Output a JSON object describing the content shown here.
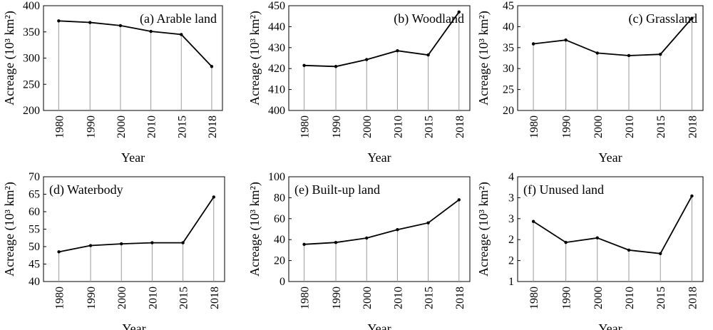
{
  "chart_data": [
    {
      "type": "line",
      "title": "(a) Arable land",
      "xlabel": "Year",
      "ylabel": "Acreage (10³ km²)",
      "categories": [
        "1980",
        "1990",
        "2000",
        "2010",
        "2015",
        "2018"
      ],
      "values": [
        371,
        368,
        362,
        351,
        345,
        284
      ],
      "ylim": [
        200,
        400
      ],
      "yticks": [
        "200",
        "250",
        "300",
        "350",
        "400"
      ],
      "grid": "vertical lines from points to axis"
    },
    {
      "type": "line",
      "title": "(b) Woodland",
      "xlabel": "Year",
      "ylabel": "Acreage (10³ km²)",
      "categories": [
        "1980",
        "1990",
        "2000",
        "2010",
        "2015",
        "2018"
      ],
      "values": [
        421.5,
        421,
        424.3,
        428.5,
        426.5,
        447
      ],
      "ylim": [
        400,
        450
      ],
      "yticks": [
        "400",
        "410",
        "420",
        "430",
        "440",
        "450"
      ],
      "grid": "vertical lines from points to axis"
    },
    {
      "type": "line",
      "title": "(c) Grassland",
      "xlabel": "Year",
      "ylabel": "Acreage (10³ km²)",
      "categories": [
        "1980",
        "1990",
        "2000",
        "2010",
        "2015",
        "2018"
      ],
      "values": [
        35.9,
        36.8,
        33.7,
        33.1,
        33.4,
        42
      ],
      "ylim": [
        20,
        45
      ],
      "yticks": [
        "20",
        "25",
        "30",
        "35",
        "40",
        "45"
      ],
      "grid": "vertical lines from points to axis"
    },
    {
      "type": "line",
      "title": "(d) Waterbody",
      "xlabel": "Year",
      "ylabel": "Acreage (10³ km²)",
      "categories": [
        "1980",
        "1990",
        "2000",
        "2010",
        "2015",
        "2018"
      ],
      "values": [
        48.5,
        50.3,
        50.8,
        51.1,
        51.1,
        64.2
      ],
      "ylim": [
        40,
        70
      ],
      "yticks": [
        "40",
        "45",
        "50",
        "55",
        "60",
        "65",
        "70"
      ],
      "grid": "vertical lines from points to axis"
    },
    {
      "type": "line",
      "title": "(e) Built-up land",
      "xlabel": "Year",
      "ylabel": "Acreage (10³ km²)",
      "categories": [
        "1980",
        "1990",
        "2000",
        "2010",
        "2015",
        "2018"
      ],
      "values": [
        35.5,
        37.3,
        41.5,
        49.5,
        56,
        78
      ],
      "ylim": [
        0,
        100
      ],
      "yticks": [
        "0",
        "20",
        "40",
        "60",
        "80",
        "100"
      ],
      "grid": "vertical lines from points to axis"
    },
    {
      "type": "line",
      "title": "(f) Unused land",
      "xlabel": "Year",
      "ylabel": "Acreage (10³ km²)",
      "categories": [
        "1980",
        "1990",
        "2000",
        "2010",
        "2015",
        "2018"
      ],
      "values": [
        2.72,
        2.12,
        2.25,
        1.9,
        1.8,
        3.45
      ],
      "ylim": [
        1,
        4
      ],
      "yticks": [
        "1",
        "2",
        "2",
        "3",
        "3",
        "4"
      ],
      "grid": "vertical lines from points to axis"
    }
  ]
}
